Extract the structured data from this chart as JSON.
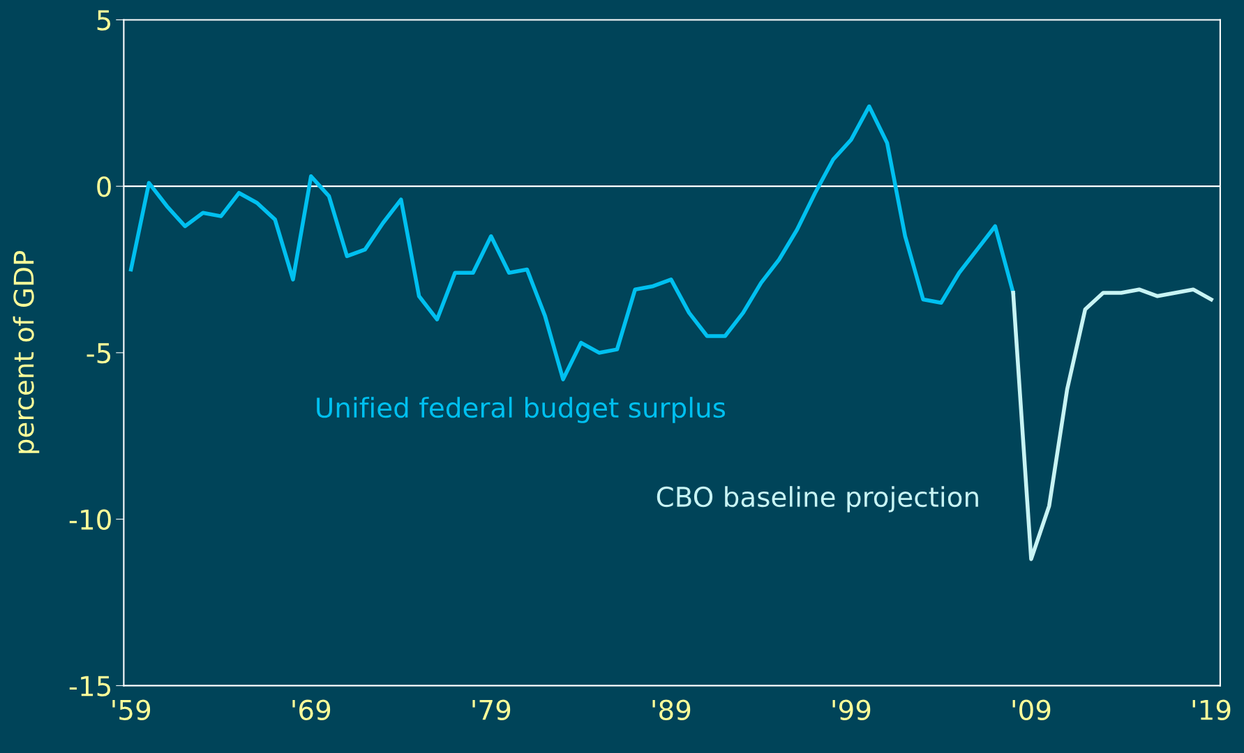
{
  "chart_data": {
    "type": "line",
    "ylabel": "percent of GDP",
    "xlim": [
      1958.6,
      2019.5
    ],
    "xticks": [
      {
        "value": 1959,
        "label": "'59"
      },
      {
        "value": 1969,
        "label": "'69"
      },
      {
        "value": 1979,
        "label": "'79"
      },
      {
        "value": 1989,
        "label": "'89"
      },
      {
        "value": 1999,
        "label": "'99"
      },
      {
        "value": 2009,
        "label": "'09"
      },
      {
        "value": 2019,
        "label": "'19"
      }
    ],
    "ylim": [
      -15,
      5
    ],
    "yticks": [
      -15,
      -10,
      -5,
      0,
      5
    ],
    "grid": false,
    "legend": false,
    "marker": "none",
    "line_style": "solid",
    "ref_lines": [
      {
        "axis": "y",
        "value": 0,
        "color": "#ffffff"
      }
    ],
    "series": [
      {
        "name": "Unified federal budget surplus",
        "color": "#00c0f0",
        "x": [
          1959,
          1960,
          1961,
          1962,
          1963,
          1964,
          1965,
          1966,
          1967,
          1968,
          1969,
          1970,
          1971,
          1972,
          1973,
          1974,
          1975,
          1976,
          1977,
          1978,
          1979,
          1980,
          1981,
          1982,
          1983,
          1984,
          1985,
          1986,
          1987,
          1988,
          1989,
          1990,
          1991,
          1992,
          1993,
          1994,
          1995,
          1996,
          1997,
          1998,
          1999,
          2000,
          2001,
          2002,
          2003,
          2004,
          2005,
          2006,
          2007,
          2008
        ],
        "values": [
          -2.5,
          0.1,
          -0.6,
          -1.2,
          -0.8,
          -0.9,
          -0.2,
          -0.5,
          -1.0,
          -2.8,
          0.3,
          -0.3,
          -2.1,
          -1.9,
          -1.1,
          -0.4,
          -3.3,
          -4.0,
          -2.6,
          -2.6,
          -1.5,
          -2.6,
          -2.5,
          -3.9,
          -5.8,
          -4.7,
          -5.0,
          -4.9,
          -3.1,
          -3.0,
          -2.8,
          -3.8,
          -4.5,
          -4.5,
          -3.8,
          -2.9,
          -2.2,
          -1.3,
          -0.2,
          0.8,
          1.4,
          2.4,
          1.3,
          -1.5,
          -3.4,
          -3.5,
          -2.6,
          -1.9,
          -1.2,
          -3.2
        ]
      },
      {
        "name": "CBO baseline projection",
        "color": "#c8f4f4",
        "x": [
          2008,
          2009,
          2010,
          2011,
          2012,
          2013,
          2014,
          2015,
          2016,
          2017,
          2018,
          2019
        ],
        "values": [
          -3.2,
          -11.2,
          -9.6,
          -6.1,
          -3.7,
          -3.2,
          -3.2,
          -3.1,
          -3.3,
          -3.2,
          -3.1,
          -3.4
        ]
      }
    ]
  }
}
